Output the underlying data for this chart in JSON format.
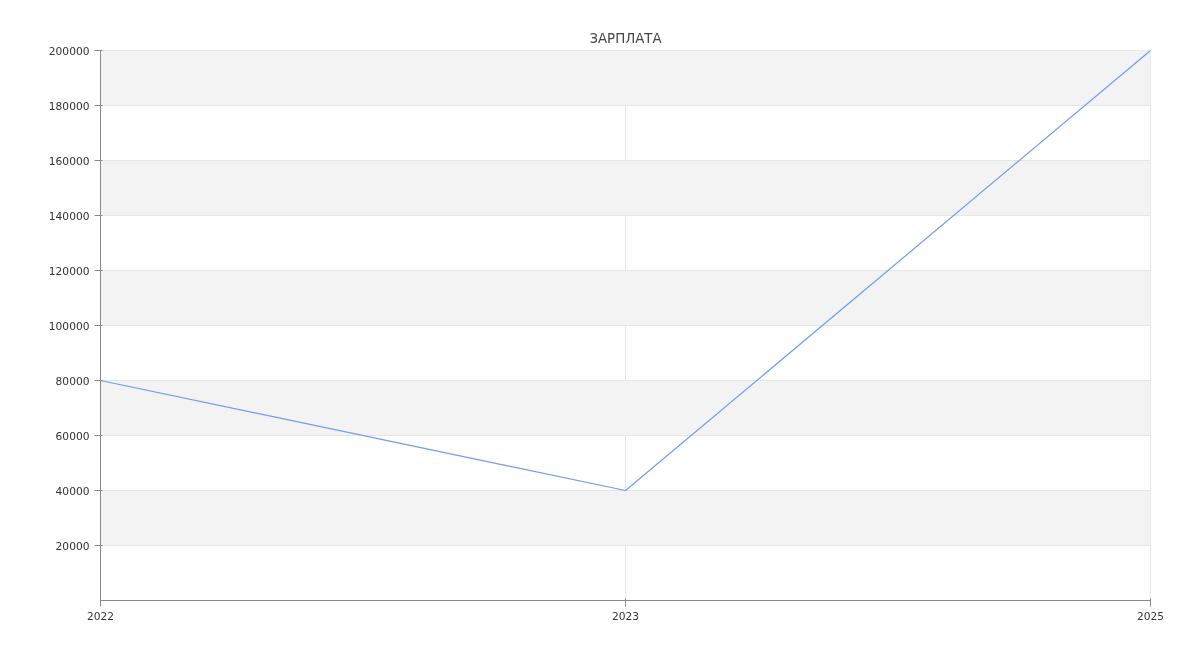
{
  "chart_data": {
    "type": "line",
    "title": "ЗАРПЛАТА",
    "categories": [
      "2022",
      "2023",
      "2025"
    ],
    "series": [
      {
        "color": "#6f9bf5",
        "values": [
          80000,
          40000,
          200000
        ]
      }
    ],
    "ylim": [
      0,
      200000
    ],
    "yticks": [
      20000,
      40000,
      60000,
      80000,
      100000,
      120000,
      140000,
      160000,
      180000,
      200000
    ],
    "grid": true,
    "marker": "none",
    "line_style": "solid"
  }
}
